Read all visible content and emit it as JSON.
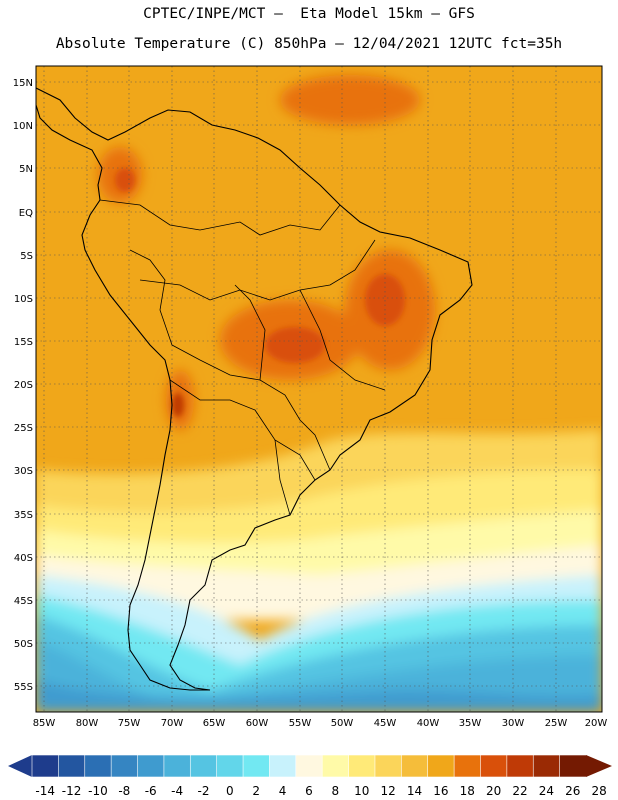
{
  "header": {
    "line1": "CPTEC/INPE/MCT –  Eta Model 15km – GFS",
    "line2": "Absolute Temperature (C) 850hPa – 12/04/2021 12UTC fct=35h"
  },
  "map": {
    "lat_labels": [
      "15N",
      "10N",
      "5N",
      "EQ",
      "5S",
      "10S",
      "15S",
      "20S",
      "25S",
      "30S",
      "35S",
      "40S",
      "45S",
      "50S",
      "55S"
    ],
    "lon_labels": [
      "85W",
      "80W",
      "75W",
      "70W",
      "65W",
      "60W",
      "55W",
      "50W",
      "45W",
      "40W",
      "35W",
      "30W",
      "25W",
      "20W"
    ]
  },
  "colorbar": {
    "labels": [
      "-14",
      "-12",
      "-10",
      "-8",
      "-6",
      "-4",
      "-2",
      "0",
      "2",
      "4",
      "6",
      "8",
      "10",
      "12",
      "14",
      "16",
      "18",
      "20",
      "22",
      "24",
      "26",
      "28"
    ],
    "colors": [
      "#1e3c8c",
      "#2356a0",
      "#2b6fb4",
      "#3585c2",
      "#3f9bcf",
      "#4bb2da",
      "#55c4e2",
      "#62d6ea",
      "#72e8f2",
      "#c8f2fc",
      "#fff8e0",
      "#fffaa8",
      "#ffea78",
      "#fbd55a",
      "#f5bd3a",
      "#f0a71a",
      "#e8720c",
      "#d9500a",
      "#bf3a06",
      "#9a2a04",
      "#741a02"
    ]
  }
}
